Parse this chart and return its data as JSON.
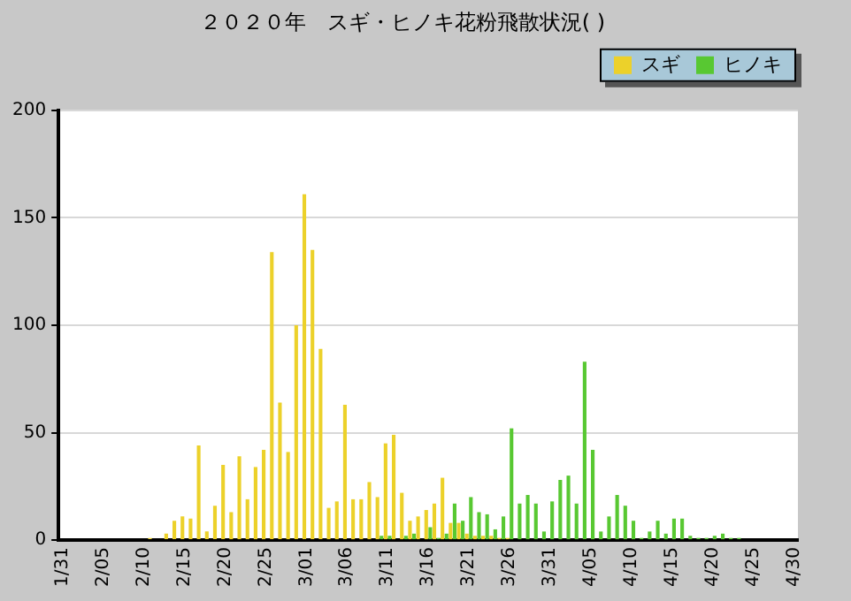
{
  "chart_data": {
    "type": "bar",
    "title": "２０２０年　スギ・ヒノキ花粉飛散状況( )",
    "categories": [
      "1/31",
      null,
      null,
      null,
      null,
      "2/05",
      null,
      null,
      null,
      null,
      "2/10",
      null,
      null,
      null,
      null,
      "2/15",
      null,
      null,
      null,
      null,
      "2/20",
      null,
      null,
      null,
      null,
      "2/25",
      null,
      null,
      null,
      null,
      "3/01",
      null,
      null,
      null,
      null,
      "3/06",
      null,
      null,
      null,
      null,
      "3/11",
      null,
      null,
      null,
      null,
      "3/16",
      null,
      null,
      null,
      null,
      "3/21",
      null,
      null,
      null,
      null,
      "3/26",
      null,
      null,
      null,
      null,
      "3/31",
      null,
      null,
      null,
      null,
      "4/05",
      null,
      null,
      null,
      null,
      "4/10",
      null,
      null,
      null,
      null,
      "4/15",
      null,
      null,
      null,
      null,
      "4/20",
      null,
      null,
      null,
      null,
      "4/25",
      null,
      null,
      null,
      null,
      "4/30"
    ],
    "series": [
      {
        "name": "スギ",
        "color": "#ecd12a",
        "values": [
          0,
          0,
          0,
          0,
          0,
          0,
          0,
          0,
          0,
          0,
          0,
          1,
          0,
          3,
          9,
          11,
          10,
          44,
          4,
          16,
          35,
          13,
          39,
          19,
          34,
          42,
          134,
          64,
          41,
          100,
          161,
          135,
          89,
          15,
          18,
          63,
          19,
          19,
          27,
          20,
          45,
          49,
          22,
          9,
          11,
          14,
          17,
          29,
          8,
          8,
          3,
          2,
          2,
          2,
          1,
          1,
          0,
          0,
          0,
          0,
          0,
          0,
          0,
          0,
          0,
          0,
          0,
          0,
          0,
          0,
          0,
          0,
          0,
          0,
          0,
          0,
          0,
          0,
          0,
          0,
          0,
          0,
          0,
          0,
          0,
          0,
          0,
          0,
          0,
          0,
          0
        ]
      },
      {
        "name": "ヒノキ",
        "color": "#58c832",
        "values": [
          0,
          0,
          0,
          0,
          0,
          0,
          0,
          0,
          0,
          0,
          0,
          0,
          0,
          0,
          0,
          0,
          0,
          0,
          0,
          0,
          0,
          0,
          0,
          0,
          0,
          0,
          0,
          0,
          0,
          0,
          0,
          0,
          0,
          0,
          0,
          0,
          0,
          0,
          0,
          2,
          2,
          0,
          2,
          3,
          0,
          6,
          1,
          3,
          17,
          9,
          20,
          13,
          12,
          5,
          11,
          52,
          17,
          21,
          17,
          4,
          18,
          28,
          30,
          17,
          83,
          42,
          4,
          11,
          21,
          16,
          9,
          1,
          4,
          9,
          3,
          10,
          10,
          2,
          1,
          1,
          2,
          3,
          1,
          1,
          0,
          0,
          0,
          0,
          0,
          0,
          0
        ]
      }
    ],
    "ylim": [
      0,
      200
    ],
    "yticks": [
      0,
      50,
      100,
      150,
      200
    ],
    "grid": "y",
    "legend": "top right"
  }
}
